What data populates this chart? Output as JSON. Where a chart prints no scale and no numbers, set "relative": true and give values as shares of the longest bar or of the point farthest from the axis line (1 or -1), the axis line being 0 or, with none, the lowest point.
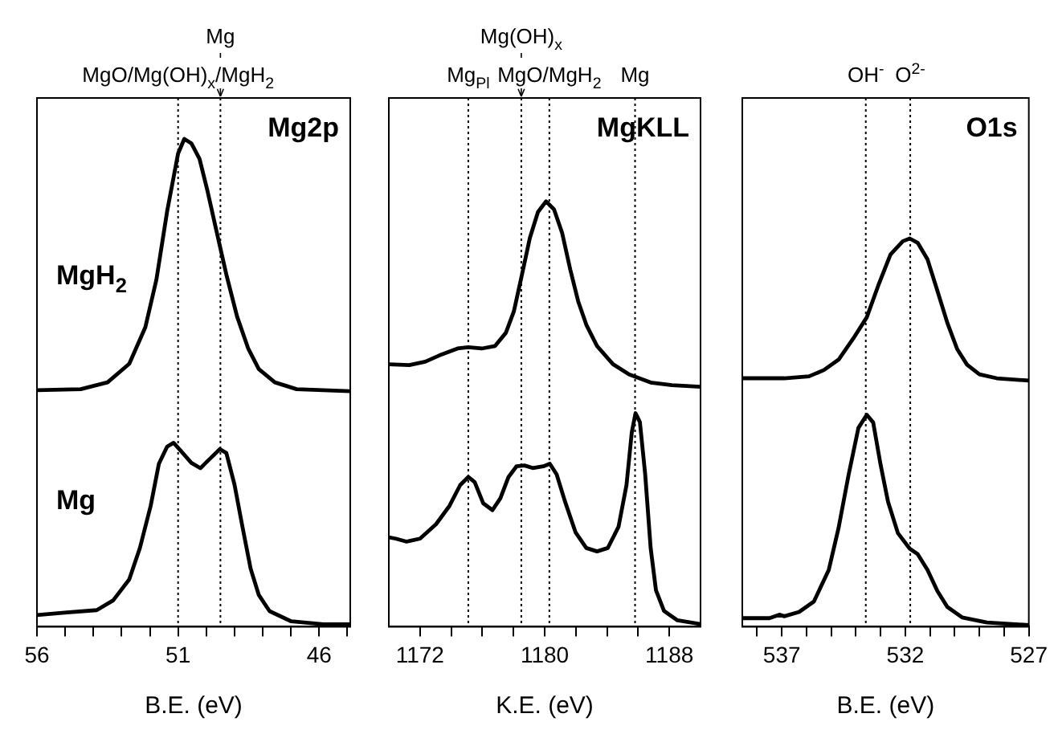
{
  "chart_data": [
    {
      "type": "line",
      "title": "Mg2p",
      "xlabel": "B.E. (eV)",
      "relative": true,
      "xlim": [
        56,
        44.9
      ],
      "xticks": [
        56,
        {
          "value": 55,
          "label": null
        },
        {
          "value": 54,
          "label": null
        },
        {
          "value": 53,
          "label": null
        },
        {
          "value": 52,
          "label": null
        },
        51,
        {
          "value": 50,
          "label": null
        },
        {
          "value": 49,
          "label": null
        },
        {
          "value": 48,
          "label": null
        },
        {
          "value": 47,
          "label": null
        },
        46,
        {
          "value": 45,
          "label": null
        }
      ],
      "ref_lines": [
        {
          "axis": "x",
          "value": 51.0,
          "label": "MgO/Mg(OH)$_{x}$/MgH$_{2}$",
          "line_style": "dotted"
        },
        {
          "axis": "x",
          "value": 49.5,
          "label": "Mg",
          "line_style": "dotted"
        }
      ],
      "series": [
        {
          "name": "MgH$_{2}$",
          "color": "#000000",
          "x": [
            56,
            54.45,
            53.5,
            52.73,
            52.16,
            51.77,
            51.39,
            51.0,
            50.78,
            50.53,
            50.24,
            49.96,
            49.67,
            49.29,
            48.91,
            48.52,
            48.14,
            47.57,
            46.8,
            45.85,
            44.9
          ],
          "values": [
            0.485,
            0.487,
            0.501,
            0.539,
            0.614,
            0.711,
            0.851,
            0.97,
            1.0,
            0.991,
            0.959,
            0.894,
            0.819,
            0.722,
            0.636,
            0.571,
            0.528,
            0.501,
            0.487,
            0.485,
            0.483
          ]
        },
        {
          "name": "Mg",
          "color": "#000000",
          "x": [
            56,
            55.02,
            53.88,
            53.3,
            52.73,
            52.35,
            51.97,
            51.68,
            51.39,
            51.16,
            50.91,
            50.53,
            50.21,
            49.86,
            49.52,
            49.29,
            49.0,
            48.72,
            48.43,
            48.14,
            47.76,
            46.99,
            45.85,
            44.9
          ],
          "values": [
            0.024,
            0.029,
            0.034,
            0.054,
            0.097,
            0.162,
            0.248,
            0.334,
            0.369,
            0.377,
            0.361,
            0.336,
            0.325,
            0.345,
            0.364,
            0.356,
            0.291,
            0.205,
            0.119,
            0.065,
            0.032,
            0.011,
            0.005,
            0.005
          ]
        }
      ]
    },
    {
      "type": "line",
      "title": "MgKLL",
      "xlabel": "K.E. (eV)",
      "relative": true,
      "xlim": [
        1170,
        1190
      ],
      "xticks": [
        1172,
        {
          "value": 1174,
          "label": null
        },
        {
          "value": 1176,
          "label": null
        },
        {
          "value": 1178,
          "label": null
        },
        1180,
        {
          "value": 1182,
          "label": null
        },
        {
          "value": 1184,
          "label": null
        },
        {
          "value": 1186,
          "label": null
        },
        1188
      ],
      "ref_lines": [
        {
          "axis": "x",
          "value": 1175.1,
          "label": "Mg$_{Pl}$",
          "line_style": "dotted"
        },
        {
          "axis": "x",
          "value": 1178.5,
          "label": "Mg(OH)$_{x}$",
          "line_style": "dotted"
        },
        {
          "axis": "x",
          "value": 1180.3,
          "label": "MgO/MgH$_{2}$",
          "line_style": "dotted"
        },
        {
          "axis": "x",
          "value": 1185.8,
          "label": "Mg",
          "line_style": "dotted"
        }
      ],
      "series": [
        {
          "color": "#000000",
          "x": [
            1170.0,
            1171.31,
            1172.34,
            1173.38,
            1174.41,
            1175.1,
            1175.96,
            1176.82,
            1177.51,
            1178.02,
            1178.54,
            1179.05,
            1179.57,
            1180.09,
            1180.6,
            1181.12,
            1181.64,
            1182.15,
            1182.67,
            1183.36,
            1184.39,
            1185.42,
            1186.8,
            1188.17,
            1190.0
          ],
          "values": [
            0.617,
            0.615,
            0.623,
            0.64,
            0.654,
            0.657,
            0.654,
            0.66,
            0.691,
            0.741,
            0.827,
            0.914,
            0.975,
            1.0,
            0.981,
            0.926,
            0.84,
            0.765,
            0.71,
            0.66,
            0.617,
            0.593,
            0.574,
            0.568,
            0.564
          ]
        },
        {
          "color": "#000000",
          "x": [
            1170.0,
            1170.45,
            1171.14,
            1172.0,
            1173.03,
            1173.89,
            1174.58,
            1175.1,
            1175.51,
            1176.06,
            1176.65,
            1177.16,
            1177.68,
            1178.19,
            1178.71,
            1179.23,
            1179.91,
            1180.33,
            1180.77,
            1181.29,
            1181.98,
            1182.67,
            1183.36,
            1184.05,
            1184.74,
            1185.25,
            1185.59,
            1185.83,
            1186.11,
            1186.45,
            1186.8,
            1187.14,
            1187.66,
            1188.52,
            1190.0
          ],
          "values": [
            0.21,
            0.207,
            0.2,
            0.207,
            0.241,
            0.284,
            0.333,
            0.352,
            0.34,
            0.29,
            0.274,
            0.302,
            0.352,
            0.377,
            0.379,
            0.373,
            0.377,
            0.383,
            0.358,
            0.296,
            0.222,
            0.185,
            0.177,
            0.185,
            0.235,
            0.333,
            0.457,
            0.502,
            0.481,
            0.358,
            0.185,
            0.086,
            0.037,
            0.015,
            0.006
          ]
        }
      ]
    },
    {
      "type": "line",
      "title": "O1s",
      "xlabel": "B.E. (eV)",
      "relative": true,
      "xlim": [
        538.6,
        527
      ],
      "xticks": [
        {
          "value": 538,
          "label": null
        },
        537,
        {
          "value": 536,
          "label": null
        },
        {
          "value": 535,
          "label": null
        },
        {
          "value": 534,
          "label": null
        },
        {
          "value": 533,
          "label": null
        },
        532,
        {
          "value": 531,
          "label": null
        },
        {
          "value": 530,
          "label": null
        },
        {
          "value": 529,
          "label": null
        },
        {
          "value": 528,
          "label": null
        },
        527
      ],
      "ref_lines": [
        {
          "axis": "x",
          "value": 533.6,
          "label": "OH$^{-}$",
          "line_style": "dotted"
        },
        {
          "axis": "x",
          "value": 531.8,
          "label": "O$^{2-}$",
          "line_style": "dotted"
        }
      ],
      "series": [
        {
          "color": "#000000",
          "x": [
            538.6,
            536.9,
            535.9,
            535.3,
            534.7,
            534.1,
            533.56,
            533.1,
            532.6,
            532.1,
            531.82,
            531.5,
            531.1,
            530.7,
            530.3,
            529.9,
            529.5,
            529.0,
            528.3,
            527.0
          ],
          "values": [
            0.64,
            0.64,
            0.645,
            0.661,
            0.688,
            0.743,
            0.797,
            0.878,
            0.959,
            0.993,
            1.0,
            0.989,
            0.946,
            0.865,
            0.783,
            0.715,
            0.675,
            0.65,
            0.64,
            0.634
          ]
        },
        {
          "color": "#000000",
          "x": [
            538.6,
            537.5,
            537.1,
            536.9,
            536.3,
            535.7,
            535.1,
            534.7,
            534.3,
            533.9,
            533.56,
            533.3,
            533.0,
            532.7,
            532.3,
            531.82,
            531.5,
            531.1,
            530.7,
            530.3,
            529.7,
            528.7,
            527.0
          ],
          "values": [
            0.022,
            0.022,
            0.031,
            0.027,
            0.038,
            0.065,
            0.146,
            0.255,
            0.39,
            0.512,
            0.546,
            0.526,
            0.417,
            0.322,
            0.241,
            0.201,
            0.187,
            0.146,
            0.092,
            0.051,
            0.024,
            0.011,
            0.004
          ]
        }
      ]
    }
  ]
}
